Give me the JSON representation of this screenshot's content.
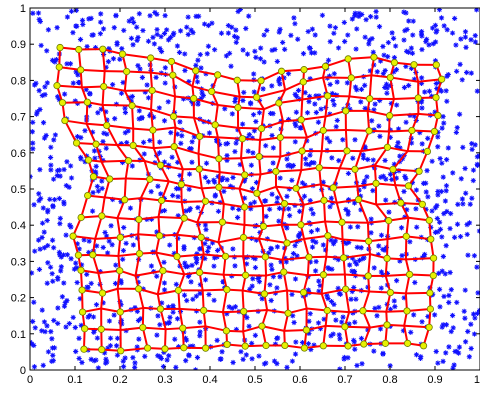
{
  "chart_data": {
    "type": "scatter",
    "title": "",
    "xlabel": "",
    "ylabel": "",
    "xlim": [
      0,
      1
    ],
    "ylim": [
      0,
      1
    ],
    "grid": false,
    "x_ticks": [
      0,
      0.1,
      0.2,
      0.3,
      0.4,
      0.5,
      0.6,
      0.7,
      0.8,
      0.9,
      1
    ],
    "x_tick_labels": [
      "0",
      "0.1",
      "0.2",
      "0.3",
      "0.4",
      "0.5",
      "0.6",
      "0.7",
      "0.8",
      "0.9",
      "1"
    ],
    "y_ticks": [
      0,
      0.1,
      0.2,
      0.3,
      0.4,
      0.5,
      0.6,
      0.7,
      0.8,
      0.9,
      1
    ],
    "y_tick_labels": [
      "0",
      "0.1",
      "0.2",
      "0.3",
      "0.4",
      "0.5",
      "0.6",
      "0.7",
      "0.8",
      "0.9",
      "1"
    ],
    "scatter_series": {
      "marker": "asterisk",
      "color": "#1010ff",
      "count": 1400,
      "distribution": "uniform random over [0,1] x [0,1]"
    },
    "network": {
      "rows": 17,
      "cols": 18,
      "edge_color": "#ff0000",
      "node_fill": "#e6f000",
      "node_stroke": "#6b7a00",
      "corners": {
        "top_left": [
          0.06,
          0.89
        ],
        "top_right": [
          0.91,
          0.85
        ],
        "bottom_left": [
          0.12,
          0.06
        ],
        "bottom_right": [
          0.88,
          0.07
        ]
      }
    },
    "colors": {
      "points": "#1010ff",
      "edges": "#ff0000",
      "nodes": "#e6f000"
    }
  }
}
